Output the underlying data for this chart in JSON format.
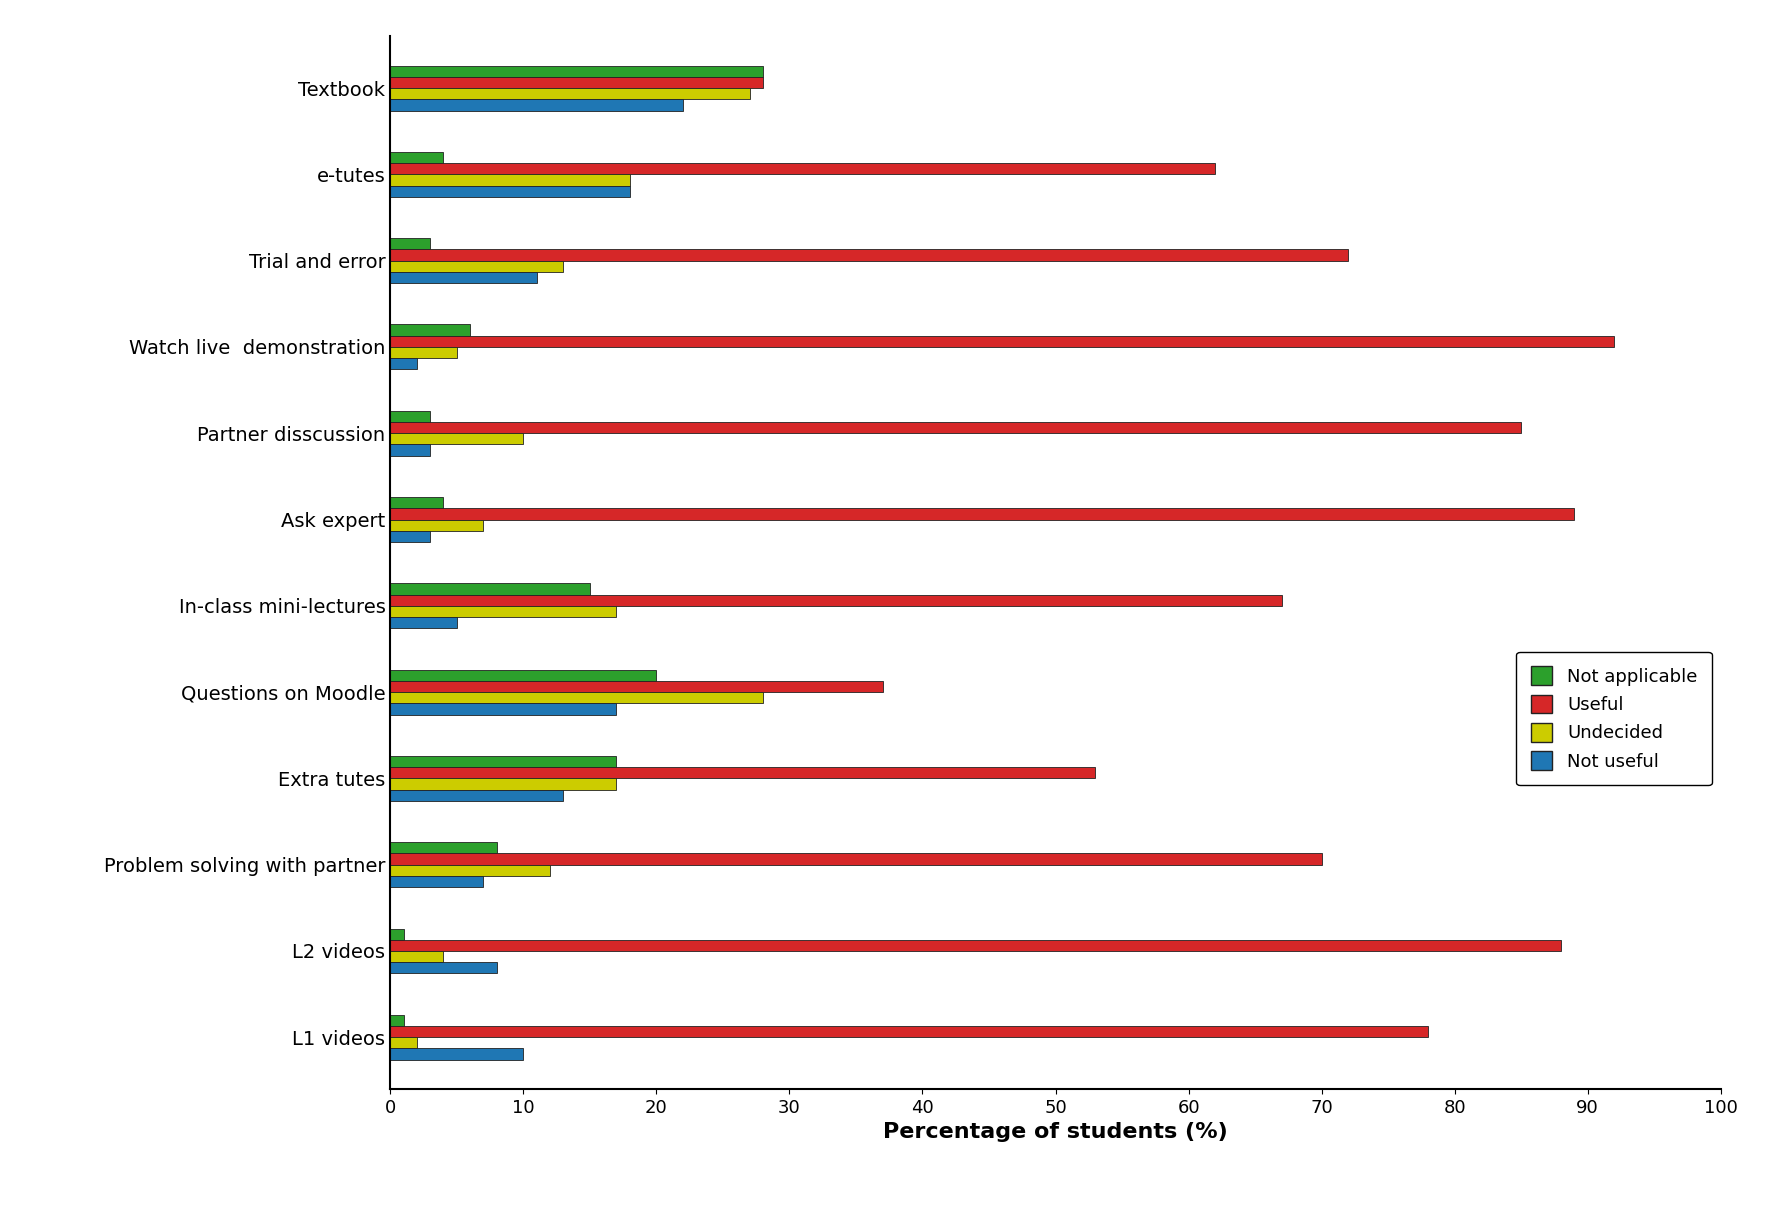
{
  "categories": [
    "L1 videos",
    "L2 videos",
    "Problem solving with partner",
    "Extra tutes",
    "Questions on Moodle",
    "In-class mini-lectures",
    "Ask expert",
    "Partner disscussion",
    "Watch live  demonstration",
    "Trial and error",
    "e-tutes",
    "Textbook"
  ],
  "series": {
    "Not applicable": [
      1,
      1,
      8,
      17,
      20,
      15,
      4,
      3,
      6,
      3,
      4,
      28
    ],
    "Useful": [
      78,
      88,
      70,
      53,
      37,
      67,
      89,
      85,
      92,
      72,
      62,
      28
    ],
    "Undecided": [
      2,
      4,
      12,
      17,
      28,
      17,
      7,
      10,
      5,
      13,
      18,
      27
    ],
    "Not useful": [
      10,
      8,
      7,
      13,
      17,
      5,
      3,
      3,
      2,
      11,
      18,
      22
    ]
  },
  "colors": {
    "Not applicable": "#2ca02c",
    "Useful": "#d62728",
    "Undecided": "#cccc00",
    "Not useful": "#1f77b4"
  },
  "legend_order": [
    "Not applicable",
    "Useful",
    "Undecided",
    "Not useful"
  ],
  "xlabel": "Percentage of students (%)",
  "xlim": [
    0,
    100
  ],
  "xticks": [
    0,
    10,
    20,
    30,
    40,
    50,
    60,
    70,
    80,
    90,
    100
  ],
  "bar_height": 0.13,
  "title": "",
  "xlabel_fontsize": 16,
  "tick_fontsize": 13,
  "label_fontsize": 14,
  "legend_fontsize": 13,
  "edge_color": "#222222"
}
